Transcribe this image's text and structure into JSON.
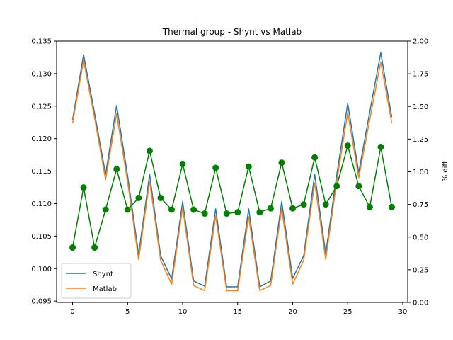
{
  "colors": {
    "shynt": "#1f77b4",
    "matlab": "#ff7f0e",
    "pct_diff": "#008000",
    "axis": "#000000",
    "background": "#ffffff"
  },
  "chart_data": {
    "type": "line",
    "title": "Thermal group - Shynt vs Matlab",
    "xlabel": "",
    "ylabel": "",
    "y2label": "% diff",
    "xlim": [
      -1.45,
      30.45
    ],
    "ylim": [
      0.0948,
      0.135
    ],
    "y2lim": [
      0.0,
      2.0
    ],
    "x": [
      0,
      1,
      2,
      3,
      4,
      5,
      6,
      7,
      8,
      9,
      10,
      11,
      12,
      13,
      14,
      15,
      16,
      17,
      18,
      19,
      20,
      21,
      22,
      23,
      24,
      25,
      26,
      27,
      28,
      29
    ],
    "x_ticks": [
      0,
      5,
      10,
      15,
      20,
      25,
      30
    ],
    "x_tick_labels": [
      "0",
      "5",
      "10",
      "15",
      "20",
      "25",
      "30"
    ],
    "y_ticks": [
      0.095,
      0.1,
      0.105,
      0.11,
      0.115,
      0.12,
      0.125,
      0.13,
      0.135
    ],
    "y_tick_labels": [
      "0.095",
      "0.100",
      "0.105",
      "0.110",
      "0.115",
      "0.120",
      "0.125",
      "0.130",
      "0.135"
    ],
    "y2_ticks": [
      0.0,
      0.25,
      0.5,
      0.75,
      1.0,
      1.25,
      1.5,
      1.75,
      2.0
    ],
    "y2_tick_labels": [
      "0.00",
      "0.25",
      "0.50",
      "0.75",
      "1.00",
      "1.25",
      "1.50",
      "1.75",
      "2.00"
    ],
    "grid": false,
    "legend_position": "lower-left",
    "series": [
      {
        "name": "Shynt",
        "axis": "left",
        "marker": "none",
        "values": [
          0.1229,
          0.1329,
          0.1239,
          0.1145,
          0.1251,
          0.1143,
          0.1022,
          0.1145,
          0.102,
          0.0984,
          0.1103,
          0.0981,
          0.0973,
          0.1092,
          0.0972,
          0.0972,
          0.1092,
          0.0972,
          0.0981,
          0.1103,
          0.0985,
          0.102,
          0.1145,
          0.1023,
          0.1144,
          0.1254,
          0.1148,
          0.1241,
          0.1332,
          0.1233
        ]
      },
      {
        "name": "Matlab",
        "axis": "left",
        "marker": "none",
        "values": [
          0.1224,
          0.132,
          0.1232,
          0.1137,
          0.1238,
          0.1134,
          0.1014,
          0.1135,
          0.1013,
          0.0976,
          0.1094,
          0.0974,
          0.0966,
          0.1081,
          0.0966,
          0.0966,
          0.108,
          0.0966,
          0.0974,
          0.1092,
          0.0976,
          0.1013,
          0.1132,
          0.1014,
          0.1134,
          0.124,
          0.114,
          0.1229,
          0.1318,
          0.1224
        ]
      },
      {
        "name": "",
        "axis": "right",
        "marker": "circle",
        "values": [
          0.42,
          0.88,
          0.42,
          0.71,
          1.02,
          0.71,
          0.8,
          1.16,
          0.8,
          0.71,
          1.06,
          0.71,
          0.68,
          1.03,
          0.68,
          0.69,
          1.04,
          0.69,
          0.72,
          1.07,
          0.72,
          0.75,
          1.11,
          0.75,
          0.89,
          1.2,
          0.89,
          0.73,
          1.19,
          0.73
        ]
      }
    ]
  }
}
